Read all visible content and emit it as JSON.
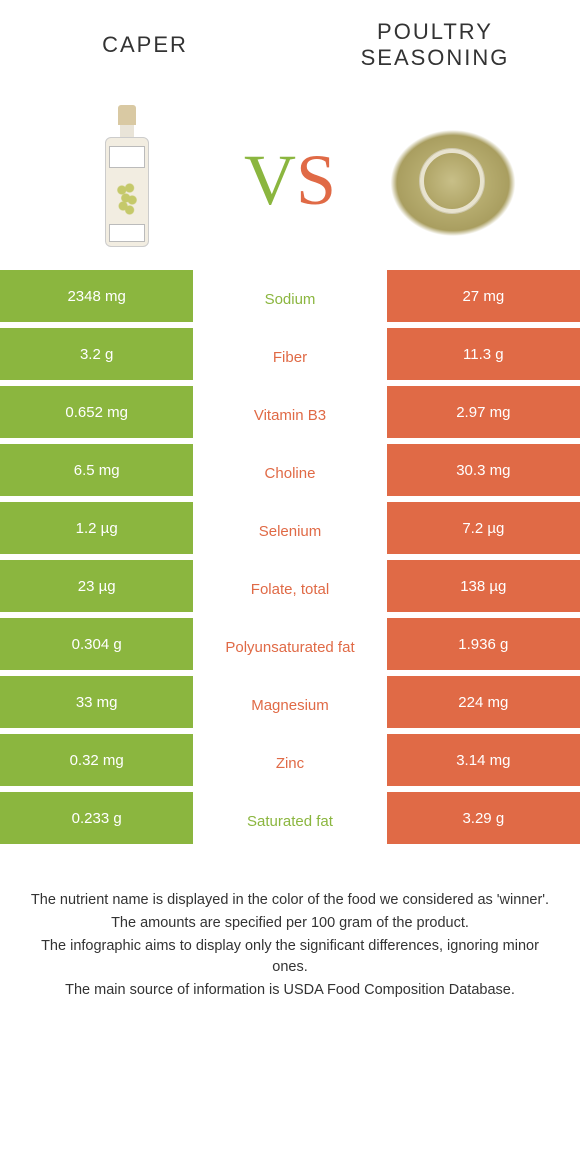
{
  "colors": {
    "green": "#8bb63f",
    "orange": "#e06a46",
    "text": "#333333",
    "white": "#ffffff"
  },
  "header": {
    "left": "Caper",
    "right": "Poultry seasoning"
  },
  "vs": {
    "v": "V",
    "s": "S"
  },
  "rows": [
    {
      "left": "2348 mg",
      "label": "Sodium",
      "right": "27 mg",
      "winner": "left"
    },
    {
      "left": "3.2 g",
      "label": "Fiber",
      "right": "11.3 g",
      "winner": "right"
    },
    {
      "left": "0.652 mg",
      "label": "Vitamin B3",
      "right": "2.97 mg",
      "winner": "right"
    },
    {
      "left": "6.5 mg",
      "label": "Choline",
      "right": "30.3 mg",
      "winner": "right"
    },
    {
      "left": "1.2 µg",
      "label": "Selenium",
      "right": "7.2 µg",
      "winner": "right"
    },
    {
      "left": "23 µg",
      "label": "Folate, total",
      "right": "138 µg",
      "winner": "right"
    },
    {
      "left": "0.304 g",
      "label": "Polyunsaturated fat",
      "right": "1.936 g",
      "winner": "right"
    },
    {
      "left": "33 mg",
      "label": "Magnesium",
      "right": "224 mg",
      "winner": "right"
    },
    {
      "left": "0.32 mg",
      "label": "Zinc",
      "right": "3.14 mg",
      "winner": "right"
    },
    {
      "left": "0.233 g",
      "label": "Saturated fat",
      "right": "3.29 g",
      "winner": "left"
    }
  ],
  "footer": {
    "p1": "The nutrient name is displayed in the color of the food we considered as 'winner'.",
    "p2": "The amounts are specified per 100 gram of the product.",
    "p3": "The infographic aims to display only the significant differences, ignoring minor ones.",
    "p4": "The main source of information is USDA Food Composition Database."
  }
}
